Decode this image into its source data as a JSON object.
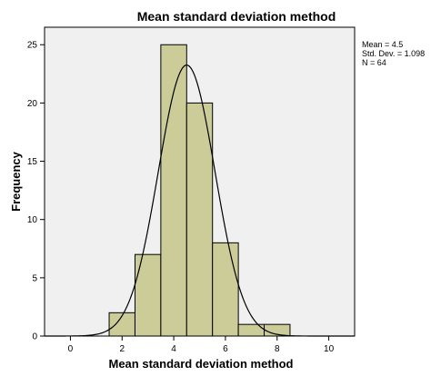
{
  "chart_data": {
    "type": "bar",
    "subtype": "histogram",
    "title": "Mean standard deviation method",
    "xlabel": "Mean standard deviation method",
    "ylabel": "Frequency",
    "xlim": [
      -1,
      11
    ],
    "ylim": [
      0,
      26.5
    ],
    "xticks": [
      0,
      2,
      4,
      6,
      8,
      10
    ],
    "yticks": [
      0,
      5,
      10,
      15,
      20,
      25
    ],
    "bins": [
      {
        "x0": 1.5,
        "x1": 2.5,
        "count": 2
      },
      {
        "x0": 2.5,
        "x1": 3.5,
        "count": 7
      },
      {
        "x0": 3.5,
        "x1": 4.5,
        "count": 25
      },
      {
        "x0": 4.5,
        "x1": 5.5,
        "count": 20
      },
      {
        "x0": 5.5,
        "x1": 6.5,
        "count": 8
      },
      {
        "x0": 6.5,
        "x1": 7.5,
        "count": 1
      },
      {
        "x0": 7.5,
        "x1": 8.5,
        "count": 1
      }
    ],
    "normal_curve": {
      "mean": 4.5,
      "std_dev": 1.098,
      "n": 64,
      "bin_width": 1
    },
    "stats_lines": [
      "Mean = 4.5",
      "Std. Dev. = 1.098",
      "N = 64"
    ],
    "grid": false,
    "colors": {
      "bar_fill": "#cccc99",
      "bar_stroke": "#000000",
      "plot_background": "#f0f0f0",
      "curve": "#000000"
    }
  }
}
